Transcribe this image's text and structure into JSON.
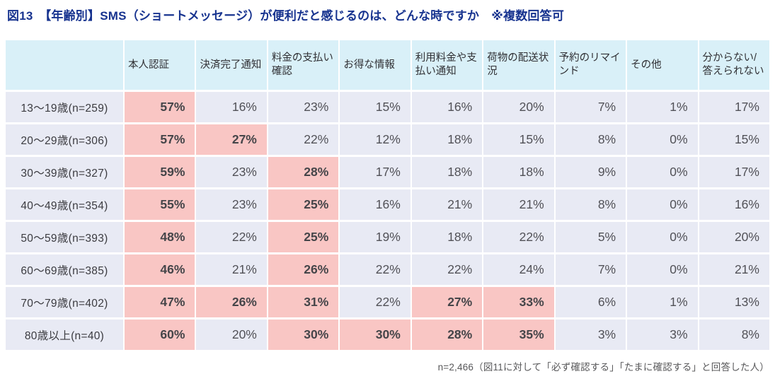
{
  "page": {
    "title": "図13　【年齢別】SMS（ショートメッセージ）が便利だと感じるのは、どんな時ですか　※複数回答可",
    "footnote": "n=2,466（図11に対して「必ず確認する」「たまに確認する」と回答した人）"
  },
  "colors": {
    "title_text": "#17338f",
    "header_bg": "#d9f0f8",
    "cell_bg": "#e8eaf4",
    "highlight_bg": "#f9c6c4",
    "value_text": "#515157",
    "footnote_text": "#58585a"
  },
  "table": {
    "columns": [
      "本人認証",
      "決済完了通知",
      "料金の支払い\n確認",
      "お得な情報",
      "利用料金や支\n払い通知",
      "荷物の配送状\n況",
      "予約のリマイ\nンド",
      "その他",
      "分からない/\n答えられない"
    ],
    "rows": [
      {
        "label": "13～19歳(n=259)",
        "values": [
          "57%",
          "16%",
          "23%",
          "15%",
          "16%",
          "20%",
          "7%",
          "1%",
          "17%"
        ],
        "highlight": [
          true,
          false,
          false,
          false,
          false,
          false,
          false,
          false,
          false
        ]
      },
      {
        "label": "20～29歳(n=306)",
        "values": [
          "57%",
          "27%",
          "22%",
          "12%",
          "18%",
          "15%",
          "8%",
          "0%",
          "15%"
        ],
        "highlight": [
          true,
          true,
          false,
          false,
          false,
          false,
          false,
          false,
          false
        ]
      },
      {
        "label": "30～39歳(n=327)",
        "values": [
          "59%",
          "23%",
          "28%",
          "17%",
          "18%",
          "18%",
          "9%",
          "0%",
          "17%"
        ],
        "highlight": [
          true,
          false,
          true,
          false,
          false,
          false,
          false,
          false,
          false
        ]
      },
      {
        "label": "40～49歳(n=354)",
        "values": [
          "55%",
          "23%",
          "25%",
          "16%",
          "21%",
          "21%",
          "8%",
          "0%",
          "16%"
        ],
        "highlight": [
          true,
          false,
          true,
          false,
          false,
          false,
          false,
          false,
          false
        ]
      },
      {
        "label": "50～59歳(n=393)",
        "values": [
          "48%",
          "22%",
          "25%",
          "19%",
          "18%",
          "22%",
          "5%",
          "0%",
          "20%"
        ],
        "highlight": [
          true,
          false,
          true,
          false,
          false,
          false,
          false,
          false,
          false
        ]
      },
      {
        "label": "60～69歳(n=385)",
        "values": [
          "46%",
          "21%",
          "26%",
          "22%",
          "22%",
          "24%",
          "7%",
          "0%",
          "21%"
        ],
        "highlight": [
          true,
          false,
          true,
          false,
          false,
          false,
          false,
          false,
          false
        ]
      },
      {
        "label": "70～79歳(n=402)",
        "values": [
          "47%",
          "26%",
          "31%",
          "22%",
          "27%",
          "33%",
          "6%",
          "1%",
          "13%"
        ],
        "highlight": [
          true,
          true,
          true,
          false,
          true,
          true,
          false,
          false,
          false
        ]
      },
      {
        "label": "80歳以上(n=40)",
        "values": [
          "60%",
          "20%",
          "30%",
          "30%",
          "28%",
          "35%",
          "3%",
          "3%",
          "8%"
        ],
        "highlight": [
          true,
          false,
          true,
          true,
          true,
          true,
          false,
          false,
          false
        ]
      }
    ]
  },
  "chart_data": {
    "type": "table",
    "title": "図13 【年齢別】SMS（ショートメッセージ）が便利だと感じるのは、どんな時ですか ※複数回答可",
    "unit": "%",
    "columns": [
      "本人認証",
      "決済完了通知",
      "料金の支払い確認",
      "お得な情報",
      "利用料金や支払い通知",
      "荷物の配送状況",
      "予約のリマインド",
      "その他",
      "分からない/答えられない"
    ],
    "rows": [
      {
        "label": "13～19歳",
        "n": 259,
        "values": [
          57,
          16,
          23,
          15,
          16,
          20,
          7,
          1,
          17
        ]
      },
      {
        "label": "20～29歳",
        "n": 306,
        "values": [
          57,
          27,
          22,
          12,
          18,
          15,
          8,
          0,
          15
        ]
      },
      {
        "label": "30～39歳",
        "n": 327,
        "values": [
          59,
          23,
          28,
          17,
          18,
          18,
          9,
          0,
          17
        ]
      },
      {
        "label": "40～49歳",
        "n": 354,
        "values": [
          55,
          23,
          25,
          16,
          21,
          21,
          8,
          0,
          16
        ]
      },
      {
        "label": "50～59歳",
        "n": 393,
        "values": [
          48,
          22,
          25,
          19,
          18,
          22,
          5,
          0,
          20
        ]
      },
      {
        "label": "60～69歳",
        "n": 385,
        "values": [
          46,
          21,
          26,
          22,
          22,
          24,
          7,
          0,
          21
        ]
      },
      {
        "label": "70～79歳",
        "n": 402,
        "values": [
          47,
          26,
          31,
          22,
          27,
          33,
          6,
          1,
          13
        ]
      },
      {
        "label": "80歳以上",
        "n": 40,
        "values": [
          60,
          20,
          30,
          30,
          28,
          35,
          3,
          3,
          8
        ]
      }
    ],
    "highlight_note": "cells with values of 25% or more have pink highlight background",
    "note": "n=2,466（図11に対して「必ず確認する」「たまに確認する」と回答した人）"
  }
}
